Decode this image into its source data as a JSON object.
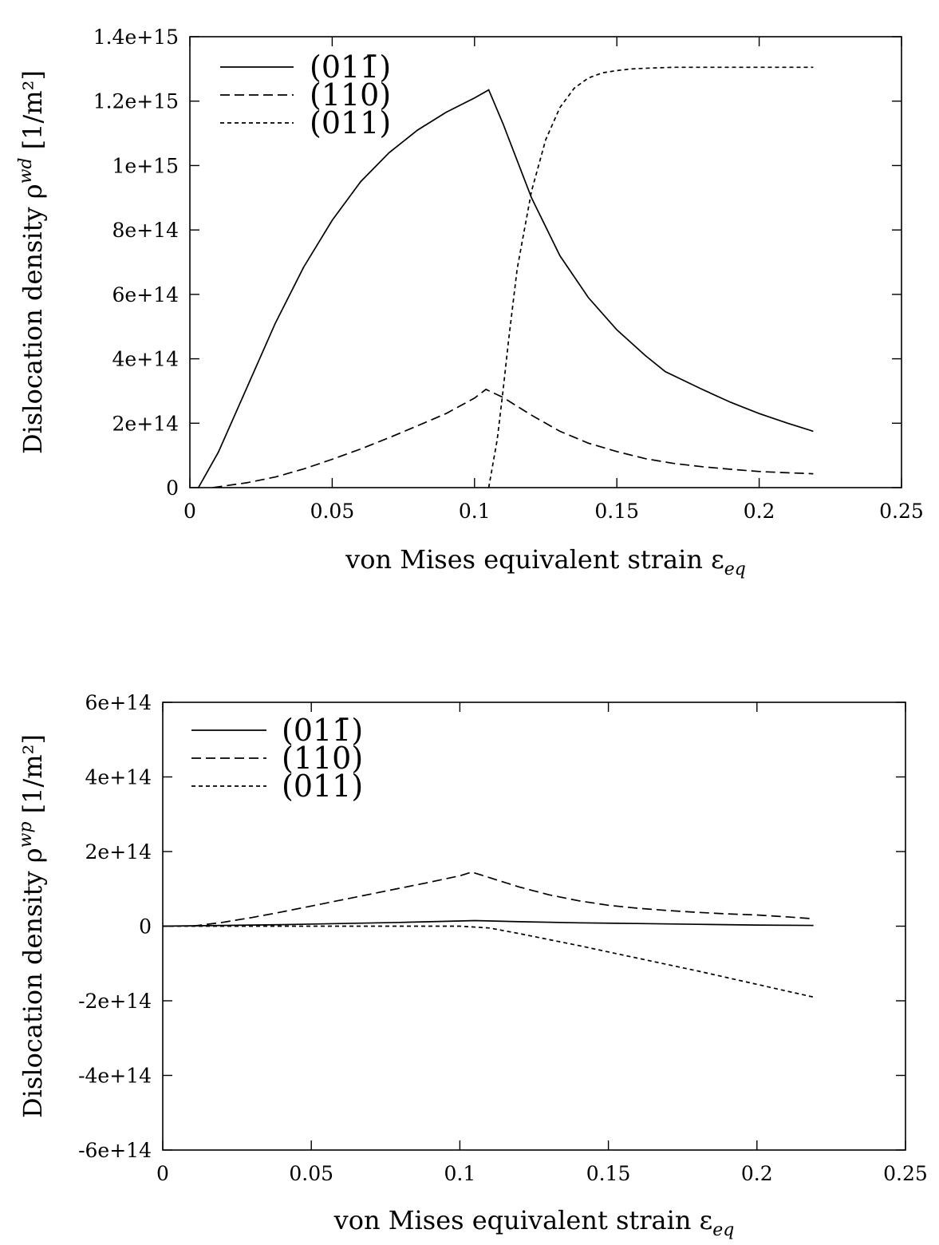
{
  "chart_data": [
    {
      "type": "line",
      "xlabel": "von Mises equivalent strain ε",
      "xlabel_sub": "eq",
      "ylabel": "Dislocation density ρ",
      "ylabel_sup": "wd",
      "ylabel_unit": " [1/m²]",
      "xlim": [
        0,
        0.25
      ],
      "ylim": [
        0,
        1400000000000000.0
      ],
      "xticks": [
        0,
        0.05,
        0.1,
        0.15,
        0.2,
        0.25
      ],
      "xtick_labels": [
        "0",
        "0.05",
        "0.1",
        "0.15",
        "0.2",
        "0.25"
      ],
      "yticks": [
        0,
        200000000000000.0,
        400000000000000.0,
        600000000000000.0,
        800000000000000.0,
        1000000000000000.0,
        1200000000000000.0,
        1400000000000000.0
      ],
      "ytick_labels": [
        "0",
        "2e+14",
        "4e+14",
        "6e+14",
        "8e+14",
        "1e+15",
        "1.2e+15",
        "1.4e+15"
      ],
      "legend_position": "top-left",
      "grid": false,
      "series": [
        {
          "name": "(011̄)",
          "dash": "solid",
          "x": [
            0.003,
            0.01,
            0.02,
            0.03,
            0.04,
            0.05,
            0.06,
            0.07,
            0.08,
            0.09,
            0.1,
            0.104,
            0.105,
            0.11,
            0.12,
            0.13,
            0.14,
            0.15,
            0.16,
            0.167,
            0.18,
            0.19,
            0.2,
            0.21,
            0.219
          ],
          "y": [
            0,
            110000000000000.0,
            310000000000000.0,
            510000000000000.0,
            685000000000000.0,
            830000000000000.0,
            950000000000000.0,
            1040000000000000.0,
            1110000000000000.0,
            1165000000000000.0,
            1210000000000000.0,
            1230000000000000.0,
            1235000000000000.0,
            1130000000000000.0,
            900000000000000.0,
            720000000000000.0,
            590000000000000.0,
            490000000000000.0,
            410000000000000.0,
            360000000000000.0,
            305000000000000.0,
            265000000000000.0,
            230000000000000.0,
            200000000000000.0,
            175000000000000.0
          ]
        },
        {
          "name": "(110)",
          "dash": "long",
          "x": [
            0.008,
            0.02,
            0.03,
            0.04,
            0.05,
            0.06,
            0.07,
            0.08,
            0.09,
            0.1,
            0.104,
            0.11,
            0.12,
            0.13,
            0.14,
            0.15,
            0.16,
            0.17,
            0.18,
            0.19,
            0.2,
            0.21,
            0.219
          ],
          "y": [
            0,
            15000000000000.0,
            33000000000000.0,
            58000000000000.0,
            88000000000000.0,
            120000000000000.0,
            155000000000000.0,
            192000000000000.0,
            230000000000000.0,
            278000000000000.0,
            305000000000000.0,
            280000000000000.0,
            225000000000000.0,
            175000000000000.0,
            138000000000000.0,
            112000000000000.0,
            90000000000000.0,
            75000000000000.0,
            65000000000000.0,
            57000000000000.0,
            50000000000000.0,
            46000000000000.0,
            43000000000000.0
          ]
        },
        {
          "name": "(011)",
          "dash": "short",
          "x": [
            0.105,
            0.108,
            0.11,
            0.112,
            0.115,
            0.12,
            0.125,
            0.13,
            0.135,
            0.14,
            0.145,
            0.15,
            0.155,
            0.16,
            0.17,
            0.18,
            0.2,
            0.219
          ],
          "y": [
            0,
            150000000000000.0,
            300000000000000.0,
            460000000000000.0,
            680000000000000.0,
            920000000000000.0,
            1080000000000000.0,
            1180000000000000.0,
            1240000000000000.0,
            1272000000000000.0,
            1288000000000000.0,
            1295000000000000.0,
            1300000000000000.0,
            1302000000000000.0,
            1305000000000000.0,
            1305000000000000.0,
            1305000000000000.0,
            1305000000000000.0
          ]
        }
      ]
    },
    {
      "type": "line",
      "xlabel": "von Mises equivalent strain ε",
      "xlabel_sub": "eq",
      "ylabel": "Dislocation density ρ",
      "ylabel_sup": "wp",
      "ylabel_unit": " [1/m²]",
      "xlim": [
        0,
        0.25
      ],
      "ylim": [
        -600000000000000.0,
        600000000000000.0
      ],
      "xticks": [
        0,
        0.05,
        0.1,
        0.15,
        0.2,
        0.25
      ],
      "xtick_labels": [
        "0",
        "0.05",
        "0.1",
        "0.15",
        "0.2",
        "0.25"
      ],
      "yticks": [
        -600000000000000.0,
        -400000000000000.0,
        -200000000000000.0,
        0,
        200000000000000.0,
        400000000000000.0,
        600000000000000.0
      ],
      "ytick_labels": [
        "-6e+14",
        "-4e+14",
        "-2e+14",
        "0",
        "2e+14",
        "4e+14",
        "6e+14"
      ],
      "legend_position": "top-left",
      "grid": false,
      "series": [
        {
          "name": "(011̄)",
          "dash": "solid",
          "x": [
            0,
            0.02,
            0.04,
            0.06,
            0.08,
            0.1,
            0.105,
            0.12,
            0.14,
            0.16,
            0.18,
            0.2,
            0.219
          ],
          "y": [
            0,
            2000000000000.0,
            4000000000000.0,
            7000000000000.0,
            10000000000000.0,
            14000000000000.0,
            15000000000000.0,
            12000000000000.0,
            9000000000000.0,
            7000000000000.0,
            5000000000000.0,
            3000000000000.0,
            2000000000000.0
          ]
        },
        {
          "name": "(110)",
          "dash": "long",
          "x": [
            0.01,
            0.02,
            0.03,
            0.04,
            0.05,
            0.06,
            0.07,
            0.08,
            0.09,
            0.1,
            0.104,
            0.11,
            0.12,
            0.13,
            0.14,
            0.15,
            0.16,
            0.17,
            0.18,
            0.19,
            0.2,
            0.21,
            0.219
          ],
          "y": [
            0,
            10000000000000.0,
            23000000000000.0,
            38000000000000.0,
            54000000000000.0,
            70000000000000.0,
            86000000000000.0,
            102000000000000.0,
            118000000000000.0,
            135000000000000.0,
            145000000000000.0,
            130000000000000.0,
            105000000000000.0,
            84000000000000.0,
            68000000000000.0,
            56000000000000.0,
            48000000000000.0,
            42000000000000.0,
            37000000000000.0,
            33000000000000.0,
            30000000000000.0,
            25000000000000.0,
            20000000000000.0
          ]
        },
        {
          "name": "(011)",
          "dash": "short",
          "x": [
            0,
            0.05,
            0.1,
            0.11,
            0.12,
            0.13,
            0.14,
            0.15,
            0.16,
            0.17,
            0.18,
            0.19,
            0.2,
            0.21,
            0.219
          ],
          "y": [
            0,
            0,
            0,
            -5000000000000.0,
            -20000000000000.0,
            -36000000000000.0,
            -52000000000000.0,
            -69000000000000.0,
            -86000000000000.0,
            -103000000000000.0,
            -120000000000000.0,
            -138000000000000.0,
            -156000000000000.0,
            -174000000000000.0,
            -190000000000000.0
          ]
        }
      ]
    }
  ]
}
